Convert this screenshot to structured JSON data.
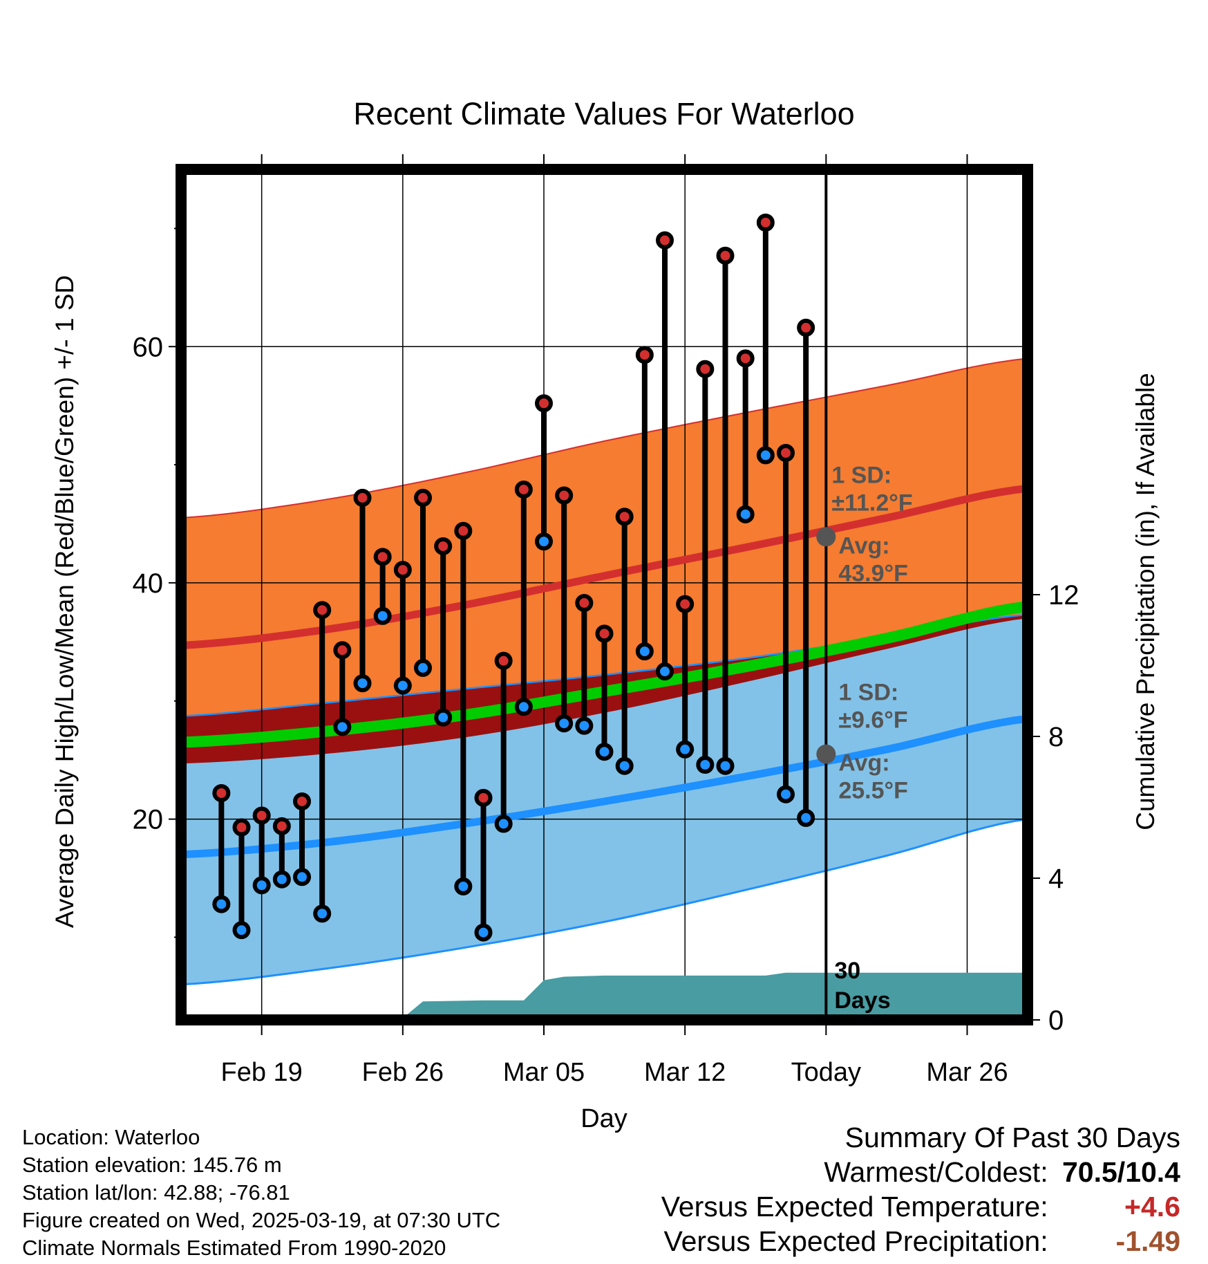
{
  "chart_data": {
    "type": "line",
    "title": "Recent Climate Values For Waterloo",
    "xlabel": "Day",
    "ylabel": "Average Daily High/Low/Mean (Red/Blue/Green) +/- 1 SD",
    "y2label": "Cumulative Precipitation (in), If Available",
    "x_range": [
      "2025-02-15",
      "2025-03-29"
    ],
    "ylim": [
      3,
      75
    ],
    "y2lim": [
      0,
      24
    ],
    "yticks": [
      20,
      40,
      60
    ],
    "yticks_minor": [
      10,
      30,
      50,
      70
    ],
    "y2ticks": [
      0,
      4,
      8,
      12
    ],
    "xticks": [
      {
        "date": "2025-02-19",
        "label": "Feb 19"
      },
      {
        "date": "2025-02-26",
        "label": "Feb 26"
      },
      {
        "date": "2025-03-05",
        "label": "Mar 05"
      },
      {
        "date": "2025-03-12",
        "label": "Mar 12"
      },
      {
        "date": "2025-03-19",
        "label": "Today"
      },
      {
        "date": "2025-03-26",
        "label": "Mar 26"
      }
    ],
    "grid": true,
    "normals": {
      "dates": [
        "2025-02-15",
        "2025-02-22",
        "2025-03-01",
        "2025-03-08",
        "2025-03-15",
        "2025-03-22",
        "2025-03-29"
      ],
      "high_plus_sd": [
        45.5,
        47.0,
        49.3,
        52.0,
        54.4,
        56.7,
        59.0
      ],
      "high_avg": [
        34.7,
        36.0,
        38.1,
        40.6,
        43.0,
        45.5,
        48.0
      ],
      "high_minus_sd": [
        24.7,
        25.5,
        26.9,
        29.0,
        31.6,
        34.4,
        37.0
      ],
      "mean_avg": [
        26.5,
        27.4,
        28.8,
        30.8,
        32.9,
        35.3,
        38.0
      ],
      "low_plus_sd": [
        28.7,
        29.8,
        31.0,
        32.2,
        33.6,
        35.4,
        37.3
      ],
      "low_avg": [
        17.0,
        18.0,
        19.6,
        21.5,
        23.6,
        25.9,
        28.5
      ],
      "low_minus_sd": [
        6.0,
        7.3,
        9.1,
        11.3,
        14.0,
        16.9,
        20.0
      ]
    },
    "today": {
      "date": "2025-03-19",
      "window_label": "30 Days",
      "high": {
        "sd_label": "1 SD:",
        "sd_value": "±11.2°F",
        "avg_label": "Avg:",
        "avg_value": "43.9°F",
        "avg": 43.9
      },
      "low": {
        "sd_label": "1 SD:",
        "sd_value": "±9.6°F",
        "avg_label": "Avg:",
        "avg_value": "25.5°F",
        "avg": 25.5
      }
    },
    "observed": {
      "dates": [
        "2025-02-17",
        "2025-02-18",
        "2025-02-19",
        "2025-02-20",
        "2025-02-21",
        "2025-02-22",
        "2025-02-23",
        "2025-02-24",
        "2025-02-25",
        "2025-02-26",
        "2025-02-27",
        "2025-02-28",
        "2025-03-01",
        "2025-03-02",
        "2025-03-03",
        "2025-03-04",
        "2025-03-05",
        "2025-03-06",
        "2025-03-07",
        "2025-03-08",
        "2025-03-09",
        "2025-03-10",
        "2025-03-11",
        "2025-03-12",
        "2025-03-13",
        "2025-03-14",
        "2025-03-15",
        "2025-03-16",
        "2025-03-17",
        "2025-03-18"
      ],
      "highs": [
        22.2,
        19.3,
        20.3,
        19.4,
        21.5,
        37.7,
        34.3,
        47.2,
        42.2,
        41.1,
        47.2,
        43.1,
        44.4,
        21.8,
        33.4,
        47.9,
        55.2,
        47.4,
        38.3,
        35.7,
        45.6,
        59.3,
        69.0,
        38.2,
        58.1,
        67.7,
        59.0,
        70.5,
        51.0,
        61.6
      ],
      "lows": [
        12.8,
        10.6,
        14.4,
        14.9,
        15.1,
        12.0,
        27.8,
        31.5,
        37.2,
        31.3,
        32.8,
        28.6,
        14.3,
        10.4,
        19.6,
        29.5,
        43.5,
        28.1,
        27.9,
        25.7,
        24.5,
        34.2,
        32.5,
        25.9,
        24.6,
        24.5,
        45.8,
        50.8,
        22.1,
        20.1
      ]
    },
    "precip_cumulative": {
      "dates": [
        "2025-02-15",
        "2025-02-25",
        "2025-02-26",
        "2025-02-27",
        "2025-03-02",
        "2025-03-04",
        "2025-03-05",
        "2025-03-06",
        "2025-03-08",
        "2025-03-16",
        "2025-03-17",
        "2025-03-29"
      ],
      "values": [
        0,
        0,
        0.05,
        0.52,
        0.55,
        0.55,
        1.12,
        1.22,
        1.25,
        1.25,
        1.33,
        1.33
      ]
    }
  },
  "footer": {
    "location": "Location: Waterloo",
    "elevation": "Station elevation: 145.76 m",
    "latlon": "Station lat/lon: 42.88; -76.81",
    "created": "Figure created on Wed, 2025-03-19, at 07:30 UTC",
    "normals": "Climate Normals Estimated From 1990-2020"
  },
  "summary": {
    "title": "Summary Of Past 30 Days",
    "warm_cold_label": "Warmest/Coldest:",
    "warm_cold_value": "70.5/10.4",
    "temp_label": "Versus Expected Temperature:",
    "temp_value": "+4.6",
    "precip_label": "Versus Expected Precipitation:",
    "precip_value": "-1.49"
  },
  "colors": {
    "high_band": "#f57c30",
    "high_line": "#d32f2f",
    "low_band": "#82c2e8",
    "low_line": "#1e90ff",
    "overlap": "#9a1010",
    "mean_line": "#00cc00",
    "precip": "#489ca2",
    "high_dot": "#d32f2f",
    "low_dot": "#1e90ff",
    "annotation": "#555555"
  }
}
